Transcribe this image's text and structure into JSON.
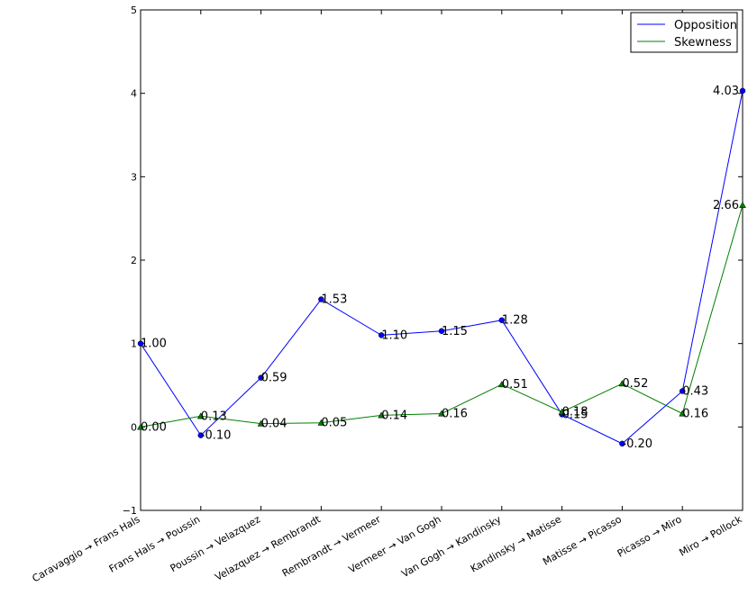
{
  "chart_data": {
    "type": "line",
    "title": "",
    "xlabel": "",
    "ylabel": "",
    "categories": [
      "Caravaggio → Frans Hals",
      "Frans Hals → Poussin",
      "Poussin → Velazquez",
      "Velazquez → Rembrandt",
      "Rembrandt → Vermeer",
      "Vermeer → Van Gogh",
      "Van Gogh → Kandinsky",
      "Kandinsky → Matisse",
      "Matisse → Picasso",
      "Picasso → Miro",
      "Miro → Pollock"
    ],
    "ylim": [
      -1,
      5
    ],
    "yticks": [
      "−1",
      "0",
      "1",
      "2",
      "3",
      "4",
      "5"
    ],
    "grid": false,
    "legend_position": "top-right",
    "series": [
      {
        "name": "Opposition",
        "color": "#0000ff",
        "marker": "circle",
        "values": [
          1.0,
          -0.1,
          0.59,
          1.53,
          1.1,
          1.15,
          1.28,
          0.15,
          -0.2,
          0.43,
          4.03
        ],
        "labels": [
          "1.00",
          "-0.10",
          "0.59",
          "1.53",
          "1.10",
          "1.15",
          "1.28",
          "0.15",
          "-0.20",
          "0.43",
          "4.03"
        ]
      },
      {
        "name": "Skewness",
        "color": "#008000",
        "marker": "triangle",
        "values": [
          0.0,
          0.13,
          0.04,
          0.05,
          0.14,
          0.16,
          0.51,
          0.18,
          0.52,
          0.16,
          2.66
        ],
        "labels": [
          "0.00",
          "0.13",
          "0.04",
          "0.05",
          "0.14",
          "0.16",
          "0.51",
          "0.18",
          "0.52",
          "0.16",
          "2.66"
        ]
      }
    ]
  }
}
